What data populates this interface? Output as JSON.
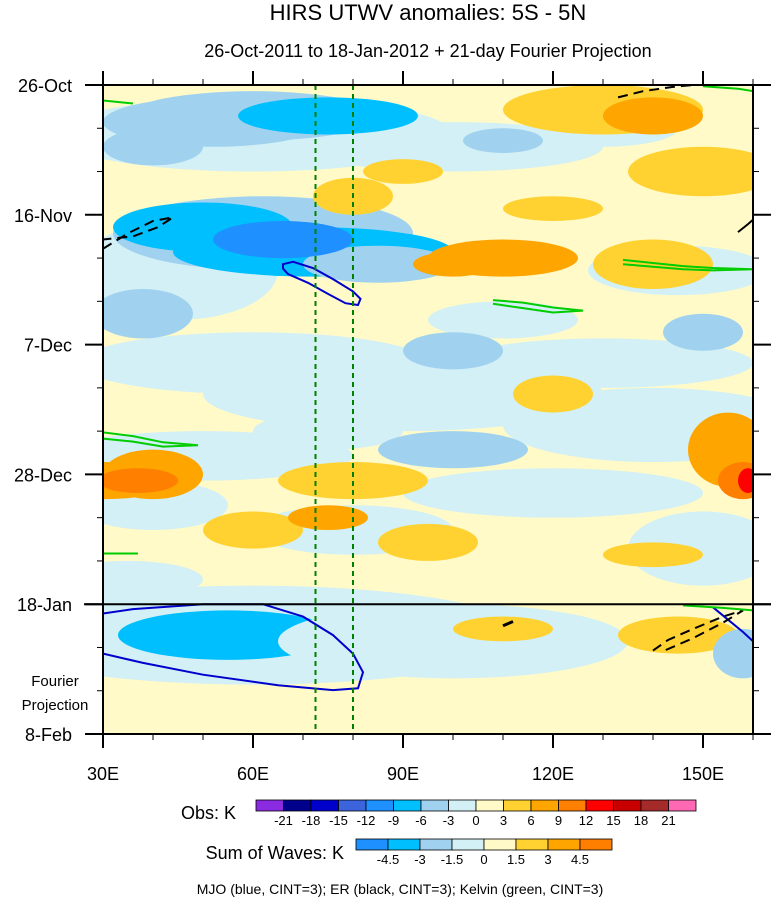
{
  "chart_data": {
    "type": "heatmap",
    "title": "HIRS UTWV anomalies: 5S - 5N",
    "subtitle": "26-Oct-2011 to 18-Jan-2012 + 21-day Fourier Projection",
    "x_axis": {
      "range": [
        30,
        160
      ],
      "ticks": [
        30,
        60,
        90,
        120,
        150
      ],
      "tick_labels": [
        "30E",
        "60E",
        "90E",
        "120E",
        "150E"
      ]
    },
    "y_axis": {
      "range_days": [
        0,
        105
      ],
      "ticks_days": [
        0,
        21,
        42,
        63,
        84,
        105
      ],
      "tick_labels": [
        "26-Oct",
        "16-Nov",
        "7-Dec",
        "28-Dec",
        "18-Jan",
        "8-Feb"
      ],
      "minor_step_days": 7
    },
    "projection_start_day": 84,
    "projection_label": [
      "Fourier",
      "Projection"
    ],
    "reference_lines_lon": [
      72.5,
      80
    ],
    "obs_colorbar": {
      "label": "Obs: K",
      "levels": [
        -21,
        -18,
        -15,
        -12,
        -9,
        -6,
        -3,
        0,
        3,
        6,
        9,
        12,
        15,
        18,
        21
      ],
      "colors": [
        "#8a2be2",
        "#00008b",
        "#0000cd",
        "#3c64dc",
        "#1e90ff",
        "#00bfff",
        "#a0d2f0",
        "#d2f0f5",
        "#fffac8",
        "#ffd232",
        "#ffa500",
        "#ff7f00",
        "#ff0000",
        "#c80000",
        "#a52a2a",
        "#ff69b4"
      ]
    },
    "waves_colorbar": {
      "label": "Sum of Waves: K",
      "levels": [
        -4.5,
        -3,
        -1.5,
        0,
        1.5,
        3,
        4.5
      ],
      "colors": [
        "#1e90ff",
        "#00bfff",
        "#a0d2f0",
        "#d2f0f5",
        "#fffac8",
        "#ffd232",
        "#ffa500",
        "#ff7f00"
      ]
    },
    "wave_contours": [
      {
        "name": "MJO",
        "color": "#0000cd",
        "dashed": false
      },
      {
        "name": "ER",
        "color": "#000000",
        "dashed": true
      },
      {
        "name": "Kelvin",
        "color": "#00cc00",
        "dashed": false
      }
    ],
    "footer": "MJO (blue, CINT=3); ER (black, CINT=3); Kelvin (green, CINT=3)"
  }
}
